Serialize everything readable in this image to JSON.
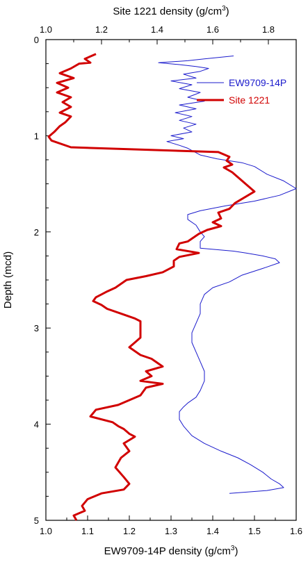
{
  "chart_data": {
    "type": "line",
    "top_axis": {
      "label": "Site 1221 density (g/cm",
      "label_sup": "3",
      "label_end": ")",
      "range": [
        1.0,
        1.9
      ],
      "ticks": [
        "1.0",
        "1.2",
        "1.4",
        "1.6",
        "1.8"
      ],
      "tick_values": [
        1.0,
        1.2,
        1.4,
        1.6,
        1.8
      ]
    },
    "bottom_axis": {
      "label": "EW9709-14P density (g/cm",
      "label_sup": "3",
      "label_end": ")",
      "range": [
        1.0,
        1.6
      ],
      "ticks": [
        "1.0",
        "1.1",
        "1.2",
        "1.3",
        "1.4",
        "1.5",
        "1.6"
      ],
      "tick_values": [
        1.0,
        1.1,
        1.2,
        1.3,
        1.4,
        1.5,
        1.6
      ]
    },
    "y_axis": {
      "label": "Depth (mcd)",
      "range": [
        0,
        5
      ],
      "reversed": true,
      "ticks": [
        "0",
        "1",
        "2",
        "3",
        "4",
        "5"
      ],
      "tick_values": [
        0,
        1,
        2,
        3,
        4,
        5
      ]
    },
    "legend": {
      "placement": "top-right"
    },
    "series": [
      {
        "name": "EW9709-14P",
        "color": "#1a1acc",
        "axis": "bottom",
        "points": [
          [
            1.45,
            0.17
          ],
          [
            1.38,
            0.2
          ],
          [
            1.34,
            0.22
          ],
          [
            1.27,
            0.24
          ],
          [
            1.32,
            0.26
          ],
          [
            1.36,
            0.28
          ],
          [
            1.39,
            0.3
          ],
          [
            1.37,
            0.33
          ],
          [
            1.33,
            0.36
          ],
          [
            1.36,
            0.4
          ],
          [
            1.3,
            0.43
          ],
          [
            1.35,
            0.47
          ],
          [
            1.32,
            0.51
          ],
          [
            1.37,
            0.55
          ],
          [
            1.34,
            0.6
          ],
          [
            1.38,
            0.64
          ],
          [
            1.32,
            0.68
          ],
          [
            1.36,
            0.72
          ],
          [
            1.31,
            0.76
          ],
          [
            1.35,
            0.8
          ],
          [
            1.32,
            0.84
          ],
          [
            1.36,
            0.88
          ],
          [
            1.33,
            0.92
          ],
          [
            1.35,
            0.96
          ],
          [
            1.3,
            1.0
          ],
          [
            1.33,
            1.03
          ],
          [
            1.29,
            1.06
          ],
          [
            1.32,
            1.1
          ],
          [
            1.34,
            1.13
          ],
          [
            1.37,
            1.2
          ],
          [
            1.41,
            1.24
          ],
          [
            1.47,
            1.28
          ],
          [
            1.5,
            1.32
          ],
          [
            1.53,
            1.4
          ],
          [
            1.57,
            1.47
          ],
          [
            1.6,
            1.55
          ],
          [
            1.56,
            1.62
          ],
          [
            1.5,
            1.68
          ],
          [
            1.43,
            1.73
          ],
          [
            1.37,
            1.78
          ],
          [
            1.34,
            1.82
          ],
          [
            1.34,
            1.87
          ],
          [
            1.36,
            1.93
          ],
          [
            1.37,
            2.0
          ],
          [
            1.38,
            2.05
          ],
          [
            1.37,
            2.1
          ],
          [
            1.37,
            2.17
          ],
          [
            1.45,
            2.2
          ],
          [
            1.48,
            2.22
          ],
          [
            1.52,
            2.25
          ],
          [
            1.55,
            2.28
          ],
          [
            1.56,
            2.32
          ],
          [
            1.52,
            2.38
          ],
          [
            1.47,
            2.45
          ],
          [
            1.44,
            2.52
          ],
          [
            1.4,
            2.58
          ],
          [
            1.38,
            2.65
          ],
          [
            1.37,
            2.75
          ],
          [
            1.37,
            2.85
          ],
          [
            1.36,
            2.95
          ],
          [
            1.35,
            3.05
          ],
          [
            1.35,
            3.15
          ],
          [
            1.36,
            3.25
          ],
          [
            1.37,
            3.35
          ],
          [
            1.38,
            3.45
          ],
          [
            1.38,
            3.55
          ],
          [
            1.37,
            3.65
          ],
          [
            1.36,
            3.72
          ],
          [
            1.34,
            3.78
          ],
          [
            1.33,
            3.82
          ],
          [
            1.32,
            3.87
          ],
          [
            1.32,
            3.95
          ],
          [
            1.33,
            4.02
          ],
          [
            1.34,
            4.07
          ],
          [
            1.35,
            4.12
          ],
          [
            1.38,
            4.2
          ],
          [
            1.42,
            4.28
          ],
          [
            1.46,
            4.35
          ],
          [
            1.49,
            4.42
          ],
          [
            1.52,
            4.5
          ],
          [
            1.54,
            4.57
          ],
          [
            1.56,
            4.62
          ],
          [
            1.57,
            4.66
          ],
          [
            1.53,
            4.69
          ],
          [
            1.44,
            4.72
          ]
        ]
      },
      {
        "name": "Site 1221",
        "color": "#d10000",
        "axis": "top",
        "points": [
          [
            1.18,
            0.15
          ],
          [
            1.14,
            0.2
          ],
          [
            1.16,
            0.24
          ],
          [
            1.12,
            0.25
          ],
          [
            1.09,
            0.3
          ],
          [
            1.05,
            0.35
          ],
          [
            1.1,
            0.4
          ],
          [
            1.04,
            0.45
          ],
          [
            1.08,
            0.5
          ],
          [
            1.04,
            0.55
          ],
          [
            1.09,
            0.6
          ],
          [
            1.06,
            0.65
          ],
          [
            1.09,
            0.7
          ],
          [
            1.05,
            0.76
          ],
          [
            1.09,
            0.8
          ],
          [
            1.07,
            0.86
          ],
          [
            1.05,
            0.9
          ],
          [
            1.03,
            0.96
          ],
          [
            1.01,
            1.01
          ],
          [
            1.02,
            1.05
          ],
          [
            1.09,
            1.12
          ],
          [
            1.62,
            1.17
          ],
          [
            1.66,
            1.22
          ],
          [
            1.65,
            1.26
          ],
          [
            1.67,
            1.3
          ],
          [
            1.64,
            1.33
          ],
          [
            1.67,
            1.38
          ],
          [
            1.75,
            1.58
          ],
          [
            1.68,
            1.7
          ],
          [
            1.66,
            1.76
          ],
          [
            1.62,
            1.8
          ],
          [
            1.63,
            1.86
          ],
          [
            1.6,
            1.9
          ],
          [
            1.63,
            1.94
          ],
          [
            1.58,
            1.98
          ],
          [
            1.55,
            2.02
          ],
          [
            1.53,
            2.06
          ],
          [
            1.51,
            2.1
          ],
          [
            1.48,
            2.12
          ],
          [
            1.47,
            2.18
          ],
          [
            1.55,
            2.22
          ],
          [
            1.48,
            2.26
          ],
          [
            1.46,
            2.3
          ],
          [
            1.46,
            2.36
          ],
          [
            1.42,
            2.42
          ],
          [
            1.36,
            2.46
          ],
          [
            1.29,
            2.5
          ],
          [
            1.25,
            2.58
          ],
          [
            1.22,
            2.62
          ],
          [
            1.2,
            2.65
          ],
          [
            1.18,
            2.68
          ],
          [
            1.17,
            2.72
          ],
          [
            1.2,
            2.76
          ],
          [
            1.22,
            2.8
          ],
          [
            1.27,
            2.85
          ],
          [
            1.32,
            2.9
          ],
          [
            1.34,
            2.93
          ],
          [
            1.34,
            3.1
          ],
          [
            1.32,
            3.15
          ],
          [
            1.3,
            3.2
          ],
          [
            1.34,
            3.28
          ],
          [
            1.38,
            3.32
          ],
          [
            1.42,
            3.4
          ],
          [
            1.36,
            3.45
          ],
          [
            1.38,
            3.5
          ],
          [
            1.34,
            3.55
          ],
          [
            1.42,
            3.58
          ],
          [
            1.36,
            3.62
          ],
          [
            1.34,
            3.7
          ],
          [
            1.26,
            3.8
          ],
          [
            1.18,
            3.85
          ],
          [
            1.16,
            3.92
          ],
          [
            1.24,
            3.98
          ],
          [
            1.26,
            4.02
          ],
          [
            1.28,
            4.05
          ],
          [
            1.3,
            4.1
          ],
          [
            1.32,
            4.13
          ],
          [
            1.28,
            4.2
          ],
          [
            1.3,
            4.28
          ],
          [
            1.27,
            4.35
          ],
          [
            1.25,
            4.45
          ],
          [
            1.28,
            4.55
          ],
          [
            1.3,
            4.62
          ],
          [
            1.28,
            4.68
          ],
          [
            1.2,
            4.72
          ],
          [
            1.15,
            4.78
          ],
          [
            1.13,
            4.85
          ],
          [
            1.14,
            4.9
          ],
          [
            1.1,
            4.95
          ],
          [
            1.11,
            5.0
          ]
        ]
      }
    ]
  }
}
